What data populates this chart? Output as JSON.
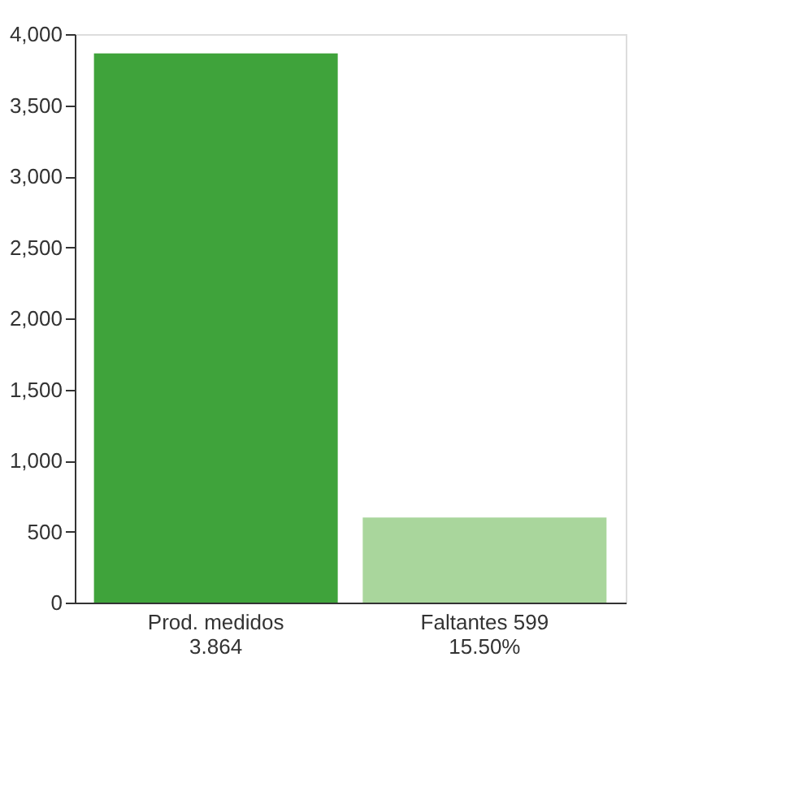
{
  "chart_data": {
    "type": "bar",
    "categories": [
      "Prod. medidos\n3.864",
      "Faltantes 599\n15.50%"
    ],
    "values": [
      3864,
      599
    ],
    "colors": [
      "#3fa33b",
      "#a9d69c"
    ],
    "ylim": [
      0,
      4000
    ],
    "yticks": [
      0,
      500,
      {
        "value": 1000,
        "label": "1,000"
      },
      {
        "value": 1500,
        "label": "1,500"
      },
      {
        "value": 2000,
        "label": "2,000"
      },
      {
        "value": 2500,
        "label": "2,500"
      },
      {
        "value": 3000,
        "label": "3,000"
      },
      {
        "value": 3500,
        "label": "3,500"
      },
      {
        "value": 4000,
        "label": "4,000"
      }
    ],
    "grid": false,
    "legend": false
  }
}
